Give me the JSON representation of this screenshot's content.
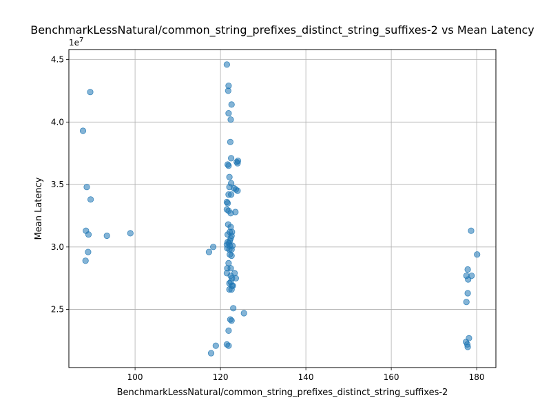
{
  "chart_data": {
    "type": "scatter",
    "title": "BenchmarkLessNatural/common_string_prefixes_distinct_string_suffixes-2 vs Mean Latency",
    "xlabel": "BenchmarkLessNatural/common_string_prefixes_distinct_string_suffixes-2",
    "ylabel": "Mean Latency",
    "y_offset_label": "1e7",
    "xlim": [
      84.5,
      184.5
    ],
    "ylim": [
      20350000,
      45800000
    ],
    "x_ticks": [
      100,
      120,
      140,
      160,
      180
    ],
    "x_tick_labels": [
      "100",
      "120",
      "140",
      "160",
      "180"
    ],
    "y_ticks": [
      25000000,
      30000000,
      35000000,
      40000000,
      45000000
    ],
    "y_tick_labels": [
      "2.5",
      "3.0",
      "3.5",
      "4.0",
      "4.5"
    ],
    "grid": true,
    "marker_color": "#1f77b4",
    "marker_alpha": 0.55,
    "points": [
      [
        87.8,
        39300000
      ],
      [
        89.5,
        42400000
      ],
      [
        88.7,
        34800000
      ],
      [
        89.6,
        33800000
      ],
      [
        88.5,
        31300000
      ],
      [
        89.1,
        31000000
      ],
      [
        93.4,
        30900000
      ],
      [
        98.9,
        31100000
      ],
      [
        89.0,
        29600000
      ],
      [
        88.4,
        28900000
      ],
      [
        117.3,
        29600000
      ],
      [
        118.3,
        30000000
      ],
      [
        117.8,
        21500000
      ],
      [
        118.9,
        22100000
      ],
      [
        121.5,
        44600000
      ],
      [
        121.9,
        42900000
      ],
      [
        121.8,
        42500000
      ],
      [
        122.6,
        41400000
      ],
      [
        121.9,
        40700000
      ],
      [
        122.4,
        40200000
      ],
      [
        122.3,
        38400000
      ],
      [
        122.5,
        37100000
      ],
      [
        121.7,
        36600000
      ],
      [
        121.9,
        36500000
      ],
      [
        124.1,
        36900000
      ],
      [
        123.8,
        36800000
      ],
      [
        124.0,
        36700000
      ],
      [
        122.1,
        35600000
      ],
      [
        122.5,
        35100000
      ],
      [
        122.1,
        34800000
      ],
      [
        123.2,
        34700000
      ],
      [
        123.6,
        34600000
      ],
      [
        124.0,
        34500000
      ],
      [
        121.9,
        34200000
      ],
      [
        122.5,
        34200000
      ],
      [
        121.5,
        33600000
      ],
      [
        121.7,
        33500000
      ],
      [
        121.5,
        33000000
      ],
      [
        121.9,
        32900000
      ],
      [
        122.4,
        32700000
      ],
      [
        123.5,
        32800000
      ],
      [
        121.8,
        31800000
      ],
      [
        122.4,
        31600000
      ],
      [
        122.2,
        31200000
      ],
      [
        122.7,
        31200000
      ],
      [
        121.7,
        31000000
      ],
      [
        122.6,
        30900000
      ],
      [
        122.4,
        30700000
      ],
      [
        122.2,
        30500000
      ],
      [
        121.7,
        30400000
      ],
      [
        122.0,
        30300000
      ],
      [
        121.5,
        30200000
      ],
      [
        122.2,
        30100000
      ],
      [
        122.8,
        30100000
      ],
      [
        121.6,
        29900000
      ],
      [
        122.1,
        29800000
      ],
      [
        122.6,
        29800000
      ],
      [
        122.2,
        29400000
      ],
      [
        122.6,
        29300000
      ],
      [
        121.9,
        28700000
      ],
      [
        121.6,
        28300000
      ],
      [
        122.4,
        28300000
      ],
      [
        121.5,
        27900000
      ],
      [
        123.3,
        27900000
      ],
      [
        122.4,
        27700000
      ],
      [
        122.7,
        27500000
      ],
      [
        123.6,
        27500000
      ],
      [
        122.1,
        27100000
      ],
      [
        122.4,
        27200000
      ],
      [
        122.9,
        26900000
      ],
      [
        122.7,
        26900000
      ],
      [
        122.1,
        26600000
      ],
      [
        122.6,
        26600000
      ],
      [
        123.0,
        25100000
      ],
      [
        125.5,
        24700000
      ],
      [
        122.3,
        24200000
      ],
      [
        122.6,
        24100000
      ],
      [
        121.9,
        23300000
      ],
      [
        121.5,
        22200000
      ],
      [
        121.9,
        22100000
      ],
      [
        178.7,
        31300000
      ],
      [
        180.1,
        29400000
      ],
      [
        177.9,
        28200000
      ],
      [
        177.6,
        27700000
      ],
      [
        178.8,
        27700000
      ],
      [
        178.0,
        27400000
      ],
      [
        177.9,
        26300000
      ],
      [
        177.6,
        25600000
      ],
      [
        178.2,
        22700000
      ],
      [
        177.5,
        22400000
      ],
      [
        177.8,
        22200000
      ],
      [
        177.9,
        22000000
      ]
    ]
  }
}
